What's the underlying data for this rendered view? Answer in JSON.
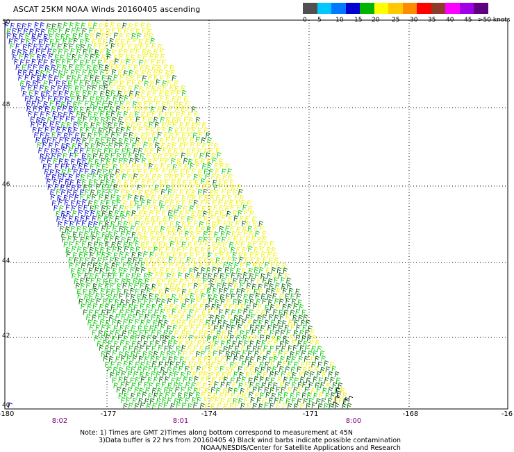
{
  "title": "ASCAT 25KM NOAA Winds 20160405 ascending",
  "scale": {
    "colors": [
      "#505050",
      "#00c8ff",
      "#0078ff",
      "#0000d2",
      "#00b400",
      "#ffff00",
      "#ffc800",
      "#ff8c00",
      "#ff0000",
      "#8c3c28",
      "#ff00ff",
      "#a000e6",
      "#600080"
    ],
    "labels": [
      "0",
      "5",
      "10",
      "15",
      "20",
      "25",
      "30",
      "35",
      "40",
      "45",
      ">50 knots"
    ]
  },
  "axes": {
    "x_labels": [
      "-180",
      "-177",
      "-174",
      "-171",
      "-168",
      "-16"
    ],
    "y_labels": [
      "50",
      "48",
      "46",
      "44",
      "42",
      "40"
    ]
  },
  "times": [
    "8:02",
    "8:01",
    "8:00"
  ],
  "notes": {
    "line1": "Note: 1) Times are GMT 2)Times along bottom correspond to measurement at 45N",
    "line2": "3)Data buffer is 22 hrs from 20160405 4) Black wind barbs indicate possible contamination",
    "line3": "NOAA/NESDIS/Center for Satellite Applications and Research"
  }
}
